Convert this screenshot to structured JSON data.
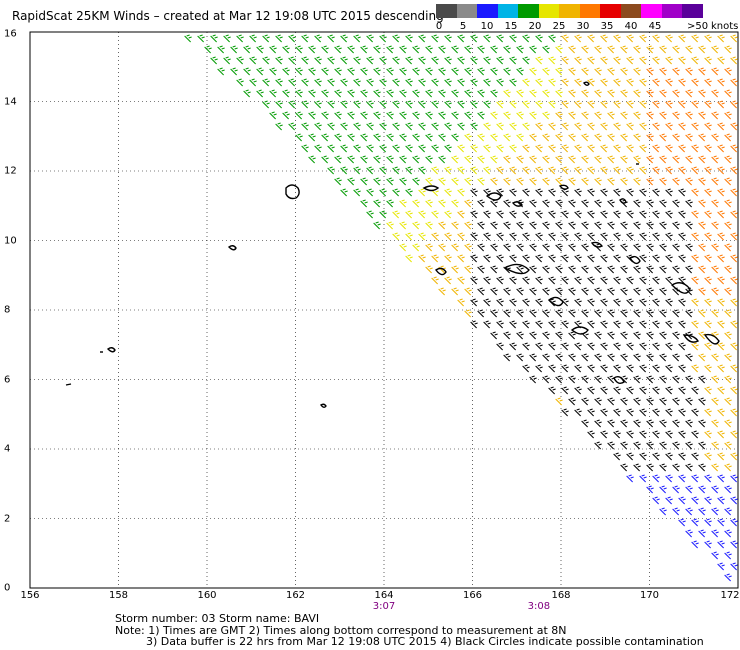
{
  "title": "RapidScat 25KM Winds – created at Mar 12 19:08 UTC 2015 descending",
  "colorbar": {
    "bins": [
      {
        "color": "#4a4a4a"
      },
      {
        "color": "#8a8a8a"
      },
      {
        "color": "#1a1aff"
      },
      {
        "color": "#00b4e6"
      },
      {
        "color": "#009a00"
      },
      {
        "color": "#e6e600"
      },
      {
        "color": "#f0b400"
      },
      {
        "color": "#ff7800"
      },
      {
        "color": "#e60000"
      },
      {
        "color": "#8c4a1e"
      },
      {
        "color": "#ff00ff"
      },
      {
        "color": "#a000c8"
      },
      {
        "color": "#5a009a"
      }
    ],
    "tick_labels": [
      "0",
      "5",
      "10",
      "15",
      "20",
      "25",
      "30",
      "35",
      "40",
      "45"
    ],
    "max_label": ">50",
    "unit": "knots"
  },
  "chart_data": {
    "type": "map",
    "x_axis": {
      "ticks": [
        "156",
        "158",
        "160",
        "162",
        "164",
        "166",
        "168",
        "170",
        "172"
      ],
      "range": [
        156,
        172
      ]
    },
    "y_axis": {
      "ticks": [
        "0",
        "2",
        "4",
        "6",
        "8",
        "10",
        "12",
        "14",
        "16"
      ],
      "range": [
        0,
        16
      ]
    },
    "grid": "dotted",
    "time_labels": [
      {
        "lon": 164,
        "text": "3:07"
      },
      {
        "lon": 167.5,
        "text": "3:08"
      }
    ]
  },
  "notes": {
    "storm_line": "Storm number: 03     Storm name: BAVI",
    "line1": "Note: 1) Times are GMT  2) Times along bottom correspond to measurement at 8N",
    "line2": "3) Data buffer is 22 hrs from Mar 12 19:08 UTC 2015   4) Black Circles indicate possible contamination"
  }
}
